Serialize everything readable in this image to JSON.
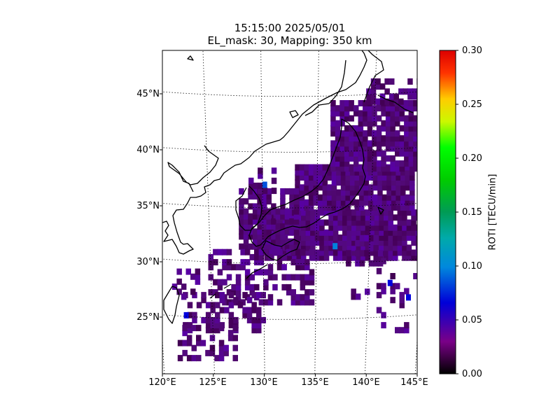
{
  "title": {
    "line1": "15:15:00 2025/05/01",
    "line2": "EL_mask: 30, Mapping: 350 km"
  },
  "map": {
    "extent": {
      "lon": [
        120,
        145
      ],
      "lat": [
        20,
        49
      ]
    },
    "lat_ticks": [
      {
        "value": 45,
        "label": "45°N"
      },
      {
        "value": 40,
        "label": "40°N"
      },
      {
        "value": 35,
        "label": "35°N"
      },
      {
        "value": 30,
        "label": "30°N"
      },
      {
        "value": 25,
        "label": "25°N"
      }
    ],
    "lon_ticks": [
      {
        "value": 120,
        "label": "120°E"
      },
      {
        "value": 125,
        "label": "125°E"
      },
      {
        "value": 130,
        "label": "130°E"
      },
      {
        "value": 135,
        "label": "135°E"
      },
      {
        "value": 140,
        "label": "140°E"
      },
      {
        "value": 145,
        "label": "145°E"
      }
    ],
    "graticule": "dotted",
    "coastline_color": "#000000",
    "dominant_roti": 0.03,
    "notable_cells": [
      {
        "lon": 129.8,
        "lat": 36.6,
        "roti": 0.07
      },
      {
        "lon": 136.7,
        "lat": 31.1,
        "roti": 0.09
      },
      {
        "lon": 142.1,
        "lat": 27.8,
        "roti": 0.06
      },
      {
        "lon": 143.9,
        "lat": 26.5,
        "roti": 0.06
      },
      {
        "lon": 122.1,
        "lat": 24.9,
        "roti": 0.06
      }
    ]
  },
  "colorbar": {
    "label": "ROTI [TECU/min]",
    "min": 0.0,
    "max": 0.3,
    "colormap": "nipy_spectral",
    "ticks": [
      "0.00",
      "0.05",
      "0.10",
      "0.15",
      "0.20",
      "0.25",
      "0.30"
    ]
  }
}
